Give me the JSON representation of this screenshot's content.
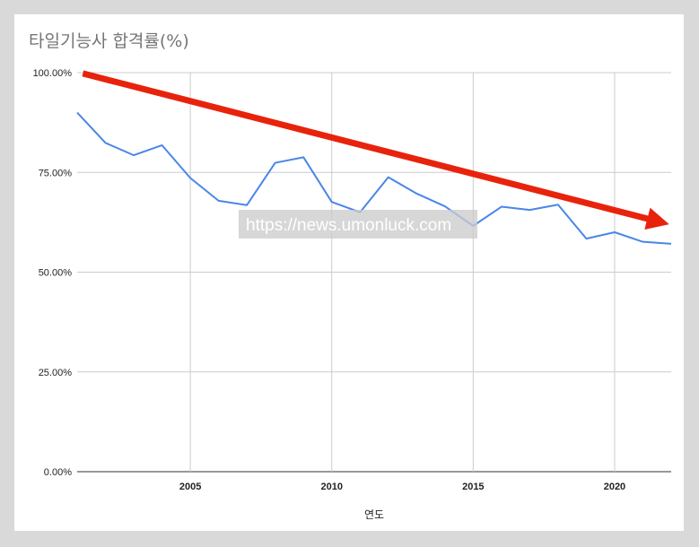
{
  "chart_data": {
    "type": "line",
    "title": "타일기능사 합격률(%)",
    "xlabel": "연도",
    "ylabel": "",
    "x": [
      2001,
      2002,
      2003,
      2004,
      2005,
      2006,
      2007,
      2008,
      2009,
      2010,
      2011,
      2012,
      2013,
      2014,
      2015,
      2016,
      2017,
      2018,
      2019,
      2020,
      2021,
      2022
    ],
    "series": [
      {
        "values": [
          90.0,
          82.4,
          79.3,
          81.8,
          73.6,
          67.9,
          66.8,
          77.4,
          78.8,
          67.6,
          65.0,
          73.8,
          69.7,
          66.5,
          61.6,
          66.4,
          65.6,
          66.9,
          58.4,
          60.0,
          57.6,
          57.1
        ],
        "color": "#4a86e8"
      }
    ],
    "xticks": [
      "2005",
      "2010",
      "2015",
      "2020"
    ],
    "yticks": [
      "0.00%",
      "25.00%",
      "50.00%",
      "75.00%",
      "100.00%"
    ],
    "ylim": [
      0,
      100
    ],
    "xlim": [
      2001,
      2022
    ],
    "grid": true,
    "legend": "none",
    "annotation": {
      "type": "trend-arrow",
      "color": "#e8230c",
      "from": [
        2001.2,
        99.8
      ],
      "to": [
        2022,
        62
      ]
    },
    "watermark": {
      "text": "https://news.umonluck.com"
    }
  }
}
